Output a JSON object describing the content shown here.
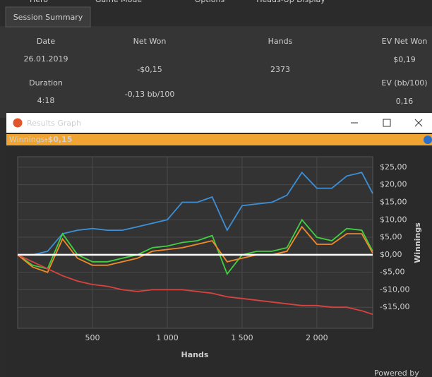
{
  "tabs": [
    "Hero",
    "Game Mode",
    "Options",
    "Heads-Up Display"
  ],
  "active_tab": "Session Summary",
  "stats": [
    {
      "label": "Date",
      "value": "26.01.2019"
    },
    {
      "label": "Duration",
      "value": "4:18"
    },
    {
      "label": "Net Won",
      "value": "-$0,15",
      "sub": "-0,13 bb/100"
    },
    {
      "label": "Hands",
      "value": "2373"
    },
    {
      "label": "EV Net Won",
      "value": "$0,19"
    },
    {
      "label": "EV (bb/100)",
      "value": "0,16"
    }
  ],
  "window_title": "Results Graph",
  "status": {
    "label": "Winnings:",
    "value": "-$0,15"
  },
  "footer": "Powered by",
  "chart_data": {
    "type": "line",
    "x_label": "Hands",
    "y_label": "Winnings",
    "x": [
      0,
      100,
      200,
      300,
      400,
      500,
      600,
      700,
      800,
      900,
      1000,
      1100,
      1200,
      1300,
      1400,
      1500,
      1600,
      1700,
      1800,
      1900,
      2000,
      2100,
      2200,
      2300,
      2373
    ],
    "series": [
      {
        "color": "#3d8fd6",
        "values": [
          0,
          0,
          1,
          6,
          7,
          7.5,
          7,
          7,
          8,
          9,
          10,
          15,
          15,
          16.5,
          7,
          14,
          14.5,
          15,
          17,
          23.5,
          19,
          19,
          22.5,
          23.5,
          17.5
        ]
      },
      {
        "color": "#3fd13f",
        "values": [
          0,
          -3,
          -4,
          6,
          0,
          -2,
          -2,
          -1,
          0,
          2,
          2.5,
          3.5,
          4,
          5.5,
          -5.5,
          0,
          1,
          1,
          2,
          10,
          5,
          4,
          7.5,
          7,
          1
        ]
      },
      {
        "color": "#f08a2a",
        "values": [
          0,
          -3.5,
          -5,
          4.5,
          -1,
          -3,
          -3,
          -2,
          -1,
          1,
          1.5,
          2,
          3,
          4,
          -2,
          -1,
          0,
          0,
          1,
          8,
          3,
          3,
          6,
          6,
          0.5
        ]
      },
      {
        "color": "#d9433f",
        "values": [
          0,
          -2,
          -4,
          -6,
          -7.5,
          -8.5,
          -9,
          -10,
          -10.5,
          -10,
          -10,
          -10,
          -10.5,
          -11,
          -12,
          -12.5,
          -13,
          -13.5,
          -14,
          -14.5,
          -14.5,
          -15,
          -15,
          -16,
          -17
        ]
      }
    ],
    "xlim": [
      0,
      2373
    ],
    "ylim": [
      -21,
      28
    ],
    "xticks": [
      500,
      {
        "value": 1000,
        "label": "1 000"
      },
      {
        "value": 1500,
        "label": "1 500"
      },
      {
        "value": 2000,
        "label": "2 000"
      }
    ],
    "yticks": [
      {
        "value": 25,
        "label": "$25,00"
      },
      {
        "value": 20,
        "label": "$20,00"
      },
      {
        "value": 15,
        "label": "$15,00"
      },
      {
        "value": 10,
        "label": "$10,00"
      },
      {
        "value": 5,
        "label": "$5,00"
      },
      {
        "value": 0,
        "label": "$0,00"
      },
      {
        "value": -5,
        "label": "-$5,00"
      },
      {
        "value": -10,
        "label": "-$10,00"
      },
      {
        "value": -15,
        "label": "-$15,00"
      }
    ],
    "grid": true
  }
}
